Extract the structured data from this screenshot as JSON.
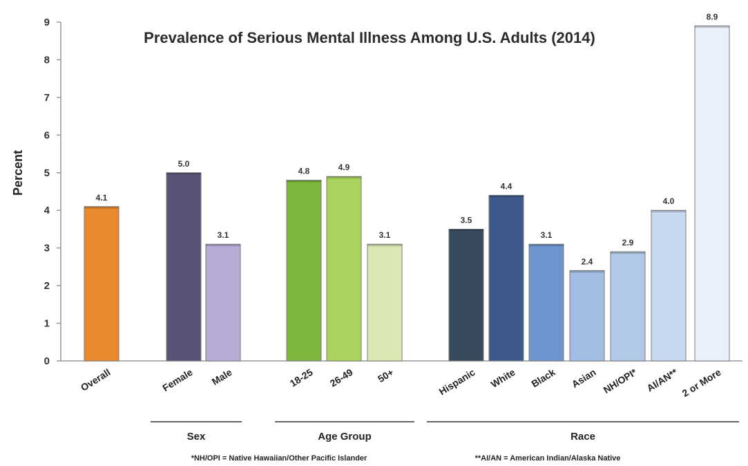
{
  "chart_data": {
    "type": "bar",
    "title": "Prevalence of Serious Mental Illness Among U.S. Adults (2014)",
    "ylabel": "Percent",
    "xlabel": "",
    "ylim": [
      0,
      9
    ],
    "yticks": [
      0,
      1,
      2,
      3,
      4,
      5,
      6,
      7,
      8,
      9
    ],
    "grid": false,
    "categories": [
      "Overall",
      "Female",
      "Male",
      "18-25",
      "26-49",
      "50+",
      "Hispanic",
      "White",
      "Black",
      "Asian",
      "NH/OPI*",
      "AI/AN**",
      "2 or More"
    ],
    "values": [
      4.1,
      5.0,
      3.1,
      4.8,
      4.9,
      3.1,
      3.5,
      4.4,
      3.1,
      2.4,
      2.9,
      4.0,
      8.9
    ],
    "value_labels": [
      "4.1",
      "5.0",
      "3.1",
      "4.8",
      "4.9",
      "3.1",
      "3.5",
      "4.4",
      "3.1",
      "2.4",
      "2.9",
      "4.0",
      "8.9"
    ],
    "colors": [
      "#e8892e",
      "#5a5378",
      "#b7acd6",
      "#7bb73e",
      "#a9d35e",
      "#d9e8b2",
      "#3a4a5e",
      "#3e5a8c",
      "#6d95d0",
      "#a3bde4",
      "#b1c8e8",
      "#c8d8ef",
      "#e9f1fa"
    ],
    "groups": [
      {
        "label": "Sex",
        "members": [
          "Female",
          "Male"
        ]
      },
      {
        "label": "Age Group",
        "members": [
          "18-25",
          "26-49",
          "50+"
        ]
      },
      {
        "label": "Race",
        "members": [
          "Hispanic",
          "White",
          "Black",
          "Asian",
          "NH/OPI*",
          "AI/AN**",
          "2 or More"
        ]
      }
    ],
    "footnotes": [
      "*NH/OPI = Native Hawaiian/Other Pacific Islander",
      "**AI/AN = American Indian/Alaska Native"
    ]
  }
}
